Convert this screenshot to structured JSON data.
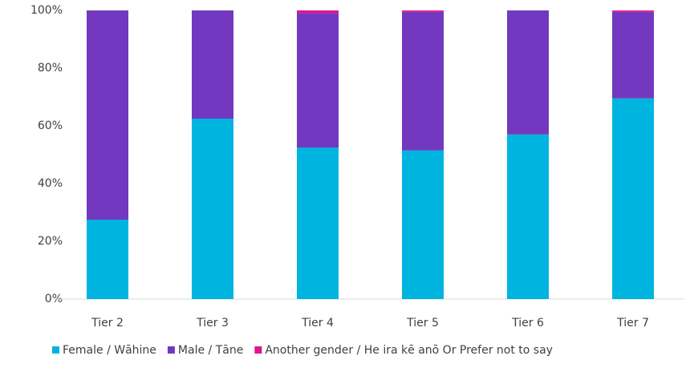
{
  "chart_data": {
    "type": "stacked_bar",
    "categories": [
      "Tier 2",
      "Tier 3",
      "Tier 4",
      "Tier 5",
      "Tier 6",
      "Tier 7"
    ],
    "series": [
      {
        "name": "Female / Wāhine",
        "color": "#00b4e0",
        "values": [
          27.5,
          62.5,
          52.5,
          51.5,
          57,
          69.5
        ]
      },
      {
        "name": "Male / Tāne",
        "color": "#7338c0",
        "values": [
          72.5,
          37.5,
          46.5,
          48,
          43,
          30
        ]
      },
      {
        "name": "Another gender / He ira kē anō Or Prefer not to say",
        "color": "#e0168c",
        "values": [
          0,
          0,
          1,
          0.5,
          0,
          0.5
        ]
      }
    ],
    "ylim": [
      0,
      100
    ],
    "yticks": [
      {
        "value": 0,
        "label": "0%"
      },
      {
        "value": 20,
        "label": "20%"
      },
      {
        "value": 40,
        "label": "40%"
      },
      {
        "value": 60,
        "label": "60%"
      },
      {
        "value": 80,
        "label": "80%"
      },
      {
        "value": 100,
        "label": "100%"
      }
    ],
    "grid": false,
    "legend": "bottom"
  }
}
